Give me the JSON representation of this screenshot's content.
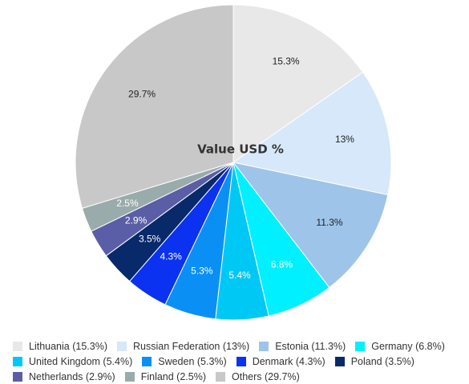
{
  "chart_data": {
    "type": "pie",
    "title": "Value USD %",
    "slices": [
      {
        "name": "Lithuania",
        "value": 15.3,
        "label": "15.3%",
        "legend": "Lithuania (15.3%)",
        "color": "#e8e8e8",
        "label_color": "#222222"
      },
      {
        "name": "Russian Federation",
        "value": 13,
        "label": "13%",
        "legend": "Russian Federation (13%)",
        "color": "#d6e8fa",
        "label_color": "#222222"
      },
      {
        "name": "Estonia",
        "value": 11.3,
        "label": "11.3%",
        "legend": "Estonia (11.3%)",
        "color": "#9ec4ea",
        "label_color": "#222222"
      },
      {
        "name": "Germany",
        "value": 6.8,
        "label": "6.8%",
        "legend": "Germany (6.8%)",
        "color": "#00f0ff",
        "label_color": "#ffffff"
      },
      {
        "name": "United Kingdom",
        "value": 5.4,
        "label": "5.4%",
        "legend": "United Kingdom (5.4%)",
        "color": "#00c8f5",
        "label_color": "#ffffff"
      },
      {
        "name": "Sweden",
        "value": 5.3,
        "label": "5.3%",
        "legend": "Sweden (5.3%)",
        "color": "#0a90f5",
        "label_color": "#ffffff"
      },
      {
        "name": "Denmark",
        "value": 4.3,
        "label": "4.3%",
        "legend": "Denmark (4.3%)",
        "color": "#0a32f0",
        "label_color": "#ffffff"
      },
      {
        "name": "Poland",
        "value": 3.5,
        "label": "3.5%",
        "legend": "Poland (3.5%)",
        "color": "#082a6a",
        "label_color": "#ffffff"
      },
      {
        "name": "Netherlands",
        "value": 2.9,
        "label": "2.9%",
        "legend": "Netherlands (2.9%)",
        "color": "#5a5ea6",
        "label_color": "#ffffff"
      },
      {
        "name": "Finland",
        "value": 2.5,
        "label": "2.5%",
        "legend": "Finland (2.5%)",
        "color": "#9aabab",
        "label_color": "#ffffff"
      },
      {
        "name": "Others",
        "value": 29.7,
        "label": "29.7%",
        "legend": "Others (29.7%)",
        "color": "#c8c8c8",
        "label_color": "#222222"
      }
    ],
    "legend_position": "bottom"
  }
}
